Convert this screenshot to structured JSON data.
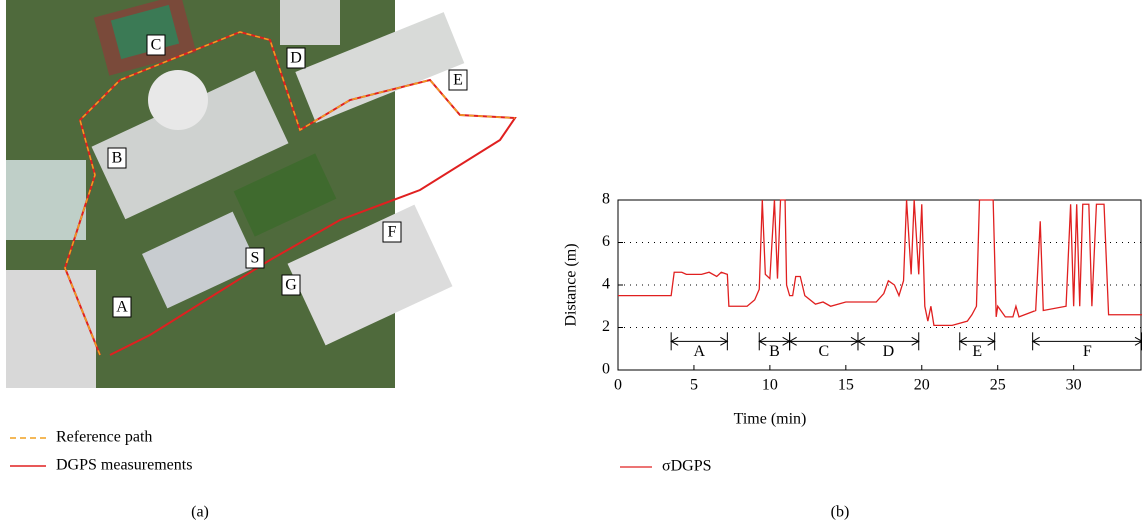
{
  "map": {
    "labels": [
      "A",
      "B",
      "C",
      "D",
      "E",
      "F",
      "G",
      "S"
    ],
    "legend": [
      {
        "name": "Reference path",
        "color": "#f0a020"
      },
      {
        "name": "DGPS measurements",
        "color": "#e02020"
      }
    ],
    "caption": "(a)"
  },
  "chart_data": {
    "type": "line",
    "xlabel": "Time (min)",
    "ylabel": "Distance (m)",
    "caption": "(b)",
    "xlim": [
      0,
      34.5
    ],
    "ylim": [
      0,
      8
    ],
    "xticks": [
      0,
      5,
      10,
      15,
      20,
      25,
      30
    ],
    "yticks": [
      0,
      2,
      4,
      6,
      8
    ],
    "grid": true,
    "x": [
      0,
      3.5,
      3.7,
      4.2,
      4.5,
      5.5,
      6,
      6.5,
      6.8,
      7.2,
      7.3,
      8.5,
      9,
      9.3,
      9.5,
      9.7,
      10,
      10.3,
      10.5,
      10.7,
      11,
      11.1,
      11.3,
      11.5,
      11.7,
      12,
      12.3,
      13,
      13.5,
      14,
      15,
      17,
      17.5,
      17.8,
      18.2,
      18.5,
      18.8,
      19,
      19.3,
      19.5,
      19.8,
      20,
      20.2,
      20.4,
      20.6,
      20.8,
      22,
      23,
      23.3,
      23.6,
      23.8,
      24.7,
      24.9,
      25,
      25.5,
      26,
      26.2,
      26.4,
      27.5,
      27.8,
      28,
      29.5,
      29.8,
      30,
      30.2,
      30.4,
      30.6,
      31,
      31.2,
      31.5,
      32,
      32.3,
      34.5
    ],
    "series": [
      {
        "name": "σDGPS",
        "color": "#e02020",
        "values": [
          3.5,
          3.5,
          4.6,
          4.6,
          4.5,
          4.5,
          4.6,
          4.4,
          4.6,
          4.5,
          3,
          3,
          3.3,
          3.8,
          8,
          4.5,
          4.3,
          8,
          4.3,
          8,
          8,
          4,
          3.5,
          3.5,
          4.4,
          4.4,
          3.5,
          3.1,
          3.2,
          3,
          3.2,
          3.2,
          3.6,
          4.2,
          4,
          3.5,
          4.2,
          8,
          4.5,
          8,
          4.5,
          7.8,
          3,
          2.3,
          3,
          2.1,
          2.1,
          2.3,
          2.6,
          3,
          8,
          8,
          2.5,
          3,
          2.5,
          2.5,
          3,
          2.5,
          2.8,
          7,
          2.8,
          3,
          7.8,
          3,
          7.8,
          3,
          7.8,
          7.8,
          3,
          7.8,
          7.8,
          2.6,
          2.6
        ]
      }
    ],
    "segments": [
      {
        "label": "A",
        "start": 3.5,
        "end": 7.2
      },
      {
        "label": "B",
        "start": 9.3,
        "end": 11.3
      },
      {
        "label": "C",
        "start": 11.3,
        "end": 15.8
      },
      {
        "label": "D",
        "start": 15.8,
        "end": 19.8
      },
      {
        "label": "E",
        "start": 22.5,
        "end": 24.8
      },
      {
        "label": "F",
        "start": 27.3,
        "end": 34.5
      }
    ],
    "segment_y": 1.35
  }
}
